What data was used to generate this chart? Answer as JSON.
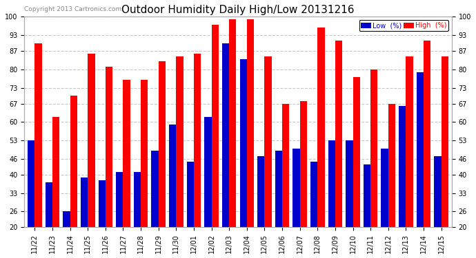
{
  "title": "Outdoor Humidity Daily High/Low 20131216",
  "copyright": "Copyright 2013 Cartronics.com",
  "dates": [
    "11/22",
    "11/23",
    "11/24",
    "11/25",
    "11/26",
    "11/27",
    "11/28",
    "11/29",
    "11/30",
    "12/01",
    "12/02",
    "12/03",
    "12/04",
    "12/05",
    "12/06",
    "12/07",
    "12/08",
    "12/09",
    "12/10",
    "12/11",
    "12/12",
    "12/13",
    "12/14",
    "12/15"
  ],
  "high": [
    90,
    62,
    70,
    86,
    81,
    76,
    76,
    83,
    85,
    86,
    97,
    99,
    99,
    85,
    67,
    68,
    96,
    91,
    77,
    80,
    67,
    85,
    91,
    85
  ],
  "low": [
    53,
    37,
    26,
    39,
    38,
    41,
    41,
    49,
    59,
    45,
    62,
    90,
    84,
    47,
    49,
    50,
    45,
    53,
    53,
    44,
    50,
    66,
    79,
    47
  ],
  "high_color": "#ff0000",
  "low_color": "#0000cc",
  "background_color": "#ffffff",
  "grid_color": "#c8c8c8",
  "ylim": [
    20,
    100
  ],
  "yticks": [
    20,
    26,
    33,
    40,
    46,
    53,
    60,
    67,
    73,
    80,
    87,
    93,
    100
  ],
  "bar_width": 0.4,
  "legend_low_label": "Low  (%)",
  "legend_high_label": "High  (%)",
  "title_fontsize": 11,
  "tick_fontsize": 7,
  "copyright_fontsize": 6.5
}
